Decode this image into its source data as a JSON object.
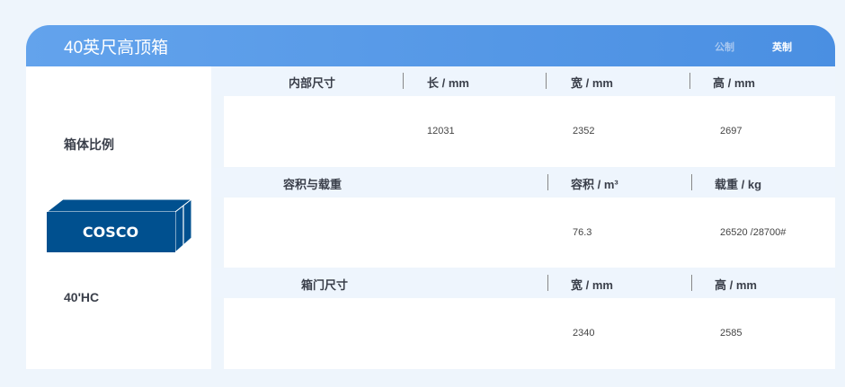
{
  "header": {
    "title": "40英尺高顶箱",
    "unit_metric": "公制",
    "unit_imperial": "英制"
  },
  "left": {
    "ratio_label": "箱体比例",
    "logo_text": "COSCO",
    "type_code": "40'HC"
  },
  "interior": {
    "label": "内部尺寸",
    "cols": [
      "长 / mm",
      "宽 / mm",
      "高 / mm"
    ],
    "values": [
      "12031",
      "2352",
      "2697"
    ]
  },
  "capacity": {
    "label": "容积与载重",
    "cols": [
      "容积 / m³",
      "载重 / kg"
    ],
    "values": [
      "76.3",
      "26520 /28700#"
    ]
  },
  "door": {
    "label": "箱门尺寸",
    "cols": [
      "宽 / mm",
      "高 / mm"
    ],
    "values": [
      "2340",
      "2585"
    ]
  },
  "colors": {
    "header": "#4a8fe2",
    "container": "#00508f"
  }
}
